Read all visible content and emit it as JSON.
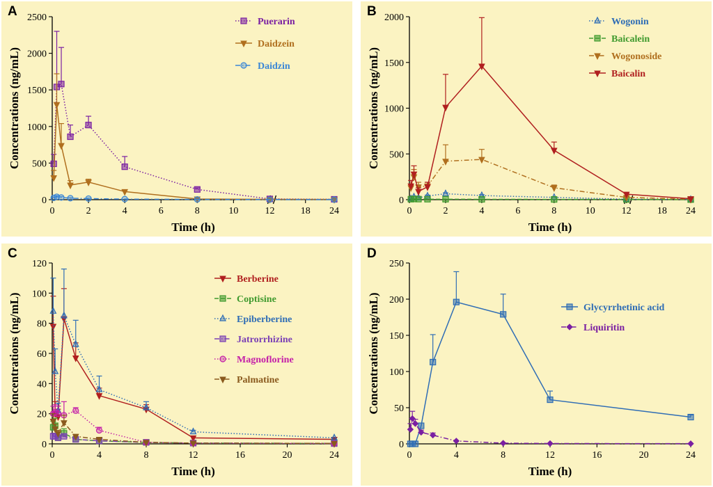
{
  "figure": {
    "x_label": "Time (h)",
    "y_label": "Concentrations (ng/mL)"
  },
  "chart_data": [
    {
      "panel_label": "A",
      "type": "line",
      "broken_x_axis": true,
      "xlabel": "Time (h)",
      "ylabel": "Concentrations (ng/mL)",
      "ylim": [
        0,
        2500
      ],
      "y_ticks": [
        0,
        500,
        1000,
        1500,
        2000,
        2500
      ],
      "x_ticks": [
        0,
        2,
        4,
        6,
        8,
        10,
        12,
        18,
        24
      ],
      "legend": "top-right",
      "series": [
        {
          "name": "Puerarin",
          "color": "#7a1fa2",
          "marker": "square",
          "line": "dotted",
          "x": [
            0.083,
            0.25,
            0.5,
            1,
            2,
            4,
            8,
            12,
            24
          ],
          "y": [
            490,
            1540,
            1580,
            860,
            1020,
            450,
            140,
            10,
            5
          ],
          "err": [
            130,
            760,
            500,
            160,
            120,
            140,
            20,
            0,
            0
          ]
        },
        {
          "name": "Daidzein",
          "color": "#b06f1e",
          "marker": "tri-down",
          "line": "solid",
          "x": [
            0.083,
            0.25,
            0.5,
            1,
            2,
            4,
            8,
            12,
            24
          ],
          "y": [
            300,
            1300,
            740,
            200,
            240,
            110,
            10,
            5,
            3
          ],
          "err": [
            100,
            420,
            300,
            60,
            40,
            20,
            0,
            0,
            0
          ]
        },
        {
          "name": "Daidzin",
          "color": "#3a86d6",
          "marker": "circle",
          "line": "dash-dot",
          "x": [
            0.083,
            0.25,
            0.5,
            1,
            2,
            4,
            8,
            12,
            24
          ],
          "y": [
            25,
            40,
            30,
            20,
            15,
            8,
            4,
            2,
            1
          ],
          "err": [
            10,
            15,
            10,
            5,
            5,
            0,
            0,
            0,
            0
          ]
        }
      ]
    },
    {
      "panel_label": "B",
      "type": "line",
      "broken_x_axis": true,
      "xlabel": "Time (h)",
      "ylabel": "Concentrations (ng/mL)",
      "ylim": [
        0,
        2000
      ],
      "y_ticks": [
        0,
        500,
        1000,
        1500,
        2000
      ],
      "x_ticks": [
        0,
        2,
        4,
        6,
        8,
        10,
        12,
        18,
        24
      ],
      "legend": "top-right",
      "series": [
        {
          "name": "Wogonin",
          "color": "#2f6db5",
          "marker": "triangle",
          "line": "dotted",
          "x": [
            0.083,
            0.25,
            0.5,
            1,
            2,
            4,
            8,
            12,
            24
          ],
          "y": [
            10,
            30,
            20,
            40,
            65,
            45,
            25,
            5,
            2
          ],
          "err": [
            5,
            10,
            10,
            10,
            10,
            10,
            5,
            0,
            0
          ]
        },
        {
          "name": "Baicalein",
          "color": "#3f9a2e",
          "marker": "square",
          "line": "dashed",
          "x": [
            0.083,
            0.25,
            0.5,
            1,
            2,
            4,
            8,
            12,
            24
          ],
          "y": [
            5,
            8,
            6,
            5,
            5,
            4,
            3,
            2,
            1
          ],
          "err": [
            0,
            0,
            0,
            0,
            0,
            0,
            0,
            0,
            0
          ]
        },
        {
          "name": "Wogonoside",
          "color": "#b06f1e",
          "marker": "tri-down",
          "line": "dash-dot",
          "x": [
            0.083,
            0.25,
            0.5,
            1,
            2,
            4,
            8,
            12,
            24
          ],
          "y": [
            130,
            250,
            140,
            150,
            420,
            440,
            130,
            25,
            5
          ],
          "err": [
            40,
            80,
            50,
            40,
            180,
            110,
            30,
            5,
            0
          ]
        },
        {
          "name": "Baicalin",
          "color": "#b01f1f",
          "marker": "tri-down",
          "line": "solid",
          "x": [
            0.083,
            0.25,
            0.5,
            1,
            2,
            4,
            8,
            12,
            24
          ],
          "y": [
            150,
            280,
            90,
            140,
            1010,
            1460,
            540,
            60,
            10
          ],
          "err": [
            60,
            90,
            40,
            50,
            360,
            530,
            90,
            10,
            0
          ]
        }
      ]
    },
    {
      "panel_label": "C",
      "type": "line",
      "xlabel": "Time (h)",
      "ylabel": "Concentrations (ng/mL)",
      "ylim": [
        0,
        120
      ],
      "xlim": [
        0,
        24
      ],
      "y_ticks": [
        0,
        20,
        40,
        60,
        80,
        100,
        120
      ],
      "x_ticks": [
        0,
        4,
        8,
        12,
        16,
        20,
        24
      ],
      "legend": "top-right",
      "series": [
        {
          "name": "Berberine",
          "color": "#b01f1f",
          "marker": "tri-down",
          "line": "solid",
          "x": [
            0.083,
            0.25,
            0.5,
            1,
            2,
            4,
            8,
            12,
            24
          ],
          "y": [
            78,
            20,
            18,
            83,
            57,
            32,
            23,
            4,
            3
          ],
          "err": [
            20,
            8,
            5,
            20,
            10,
            5,
            3,
            1,
            0
          ]
        },
        {
          "name": "Coptisine",
          "color": "#3f9a2e",
          "marker": "square",
          "line": "dashed",
          "x": [
            0.083,
            0.25,
            0.5,
            1,
            2,
            4,
            8,
            12,
            24
          ],
          "y": [
            11,
            12,
            4,
            7,
            3,
            2,
            1,
            0.5,
            0.3
          ],
          "err": [
            4,
            5,
            2,
            3,
            1,
            1,
            0,
            0,
            0
          ]
        },
        {
          "name": "Epiberberine",
          "color": "#2f6db5",
          "marker": "triangle",
          "line": "dotted",
          "x": [
            0.083,
            0.25,
            0.5,
            1,
            2,
            4,
            8,
            12,
            24
          ],
          "y": [
            88,
            48,
            22,
            85,
            66,
            36,
            24,
            8,
            4
          ],
          "err": [
            22,
            15,
            5,
            31,
            16,
            9,
            4,
            1,
            0
          ]
        },
        {
          "name": "Jatrorrhizine",
          "color": "#7a3fb5",
          "marker": "square",
          "line": "dash-dot",
          "x": [
            0.083,
            0.25,
            0.5,
            1,
            2,
            4,
            8,
            12,
            24
          ],
          "y": [
            5,
            5,
            4,
            5,
            3,
            2,
            1,
            0.5,
            0.2
          ],
          "err": [
            2,
            2,
            1,
            1,
            1,
            0,
            0,
            0,
            0
          ]
        },
        {
          "name": "Magnoflorine",
          "color": "#c41fa8",
          "marker": "circle",
          "line": "dotted",
          "x": [
            0.083,
            0.25,
            0.5,
            1,
            2,
            4,
            8,
            12,
            24
          ],
          "y": [
            20,
            21,
            20,
            19,
            22,
            9,
            1,
            0.5,
            0.3
          ],
          "err": [
            5,
            5,
            5,
            9,
            2,
            2,
            0,
            0,
            0
          ]
        },
        {
          "name": "Palmatine",
          "color": "#8a5a1e",
          "marker": "tri-down",
          "line": "dash-dot",
          "x": [
            0.083,
            0.25,
            0.5,
            1,
            2,
            4,
            8,
            12,
            24
          ],
          "y": [
            15,
            10,
            7,
            14,
            5,
            3,
            1,
            0.5,
            0.3
          ],
          "err": [
            5,
            3,
            2,
            5,
            1,
            1,
            0,
            0,
            0
          ]
        }
      ]
    },
    {
      "panel_label": "D",
      "type": "line",
      "xlabel": "Time (h)",
      "ylabel": "Concentrations (ng/mL)",
      "ylim": [
        0,
        250
      ],
      "xlim": [
        0,
        24
      ],
      "y_ticks": [
        0,
        50,
        100,
        150,
        200,
        250
      ],
      "x_ticks": [
        0,
        4,
        8,
        12,
        16,
        20,
        24
      ],
      "legend": "right",
      "series": [
        {
          "name": "Glycyrrhetinic acid",
          "color": "#2f6db5",
          "marker": "square",
          "line": "solid",
          "x": [
            0.083,
            0.25,
            0.5,
            1,
            2,
            4,
            8,
            12,
            24
          ],
          "y": [
            0,
            0,
            0,
            25,
            113,
            196,
            179,
            61,
            37
          ],
          "err": [
            0,
            0,
            0,
            0,
            38,
            42,
            28,
            12,
            3
          ]
        },
        {
          "name": "Liquiritin",
          "color": "#7a1fa2",
          "marker": "diamond",
          "line": "dash-dot",
          "x": [
            0.083,
            0.25,
            0.5,
            1,
            2,
            4,
            8,
            12,
            24
          ],
          "y": [
            20,
            35,
            28,
            16,
            12,
            4,
            1,
            0.5,
            0.3
          ],
          "err": [
            8,
            10,
            6,
            3,
            3,
            0,
            0,
            0,
            0
          ]
        }
      ]
    }
  ]
}
